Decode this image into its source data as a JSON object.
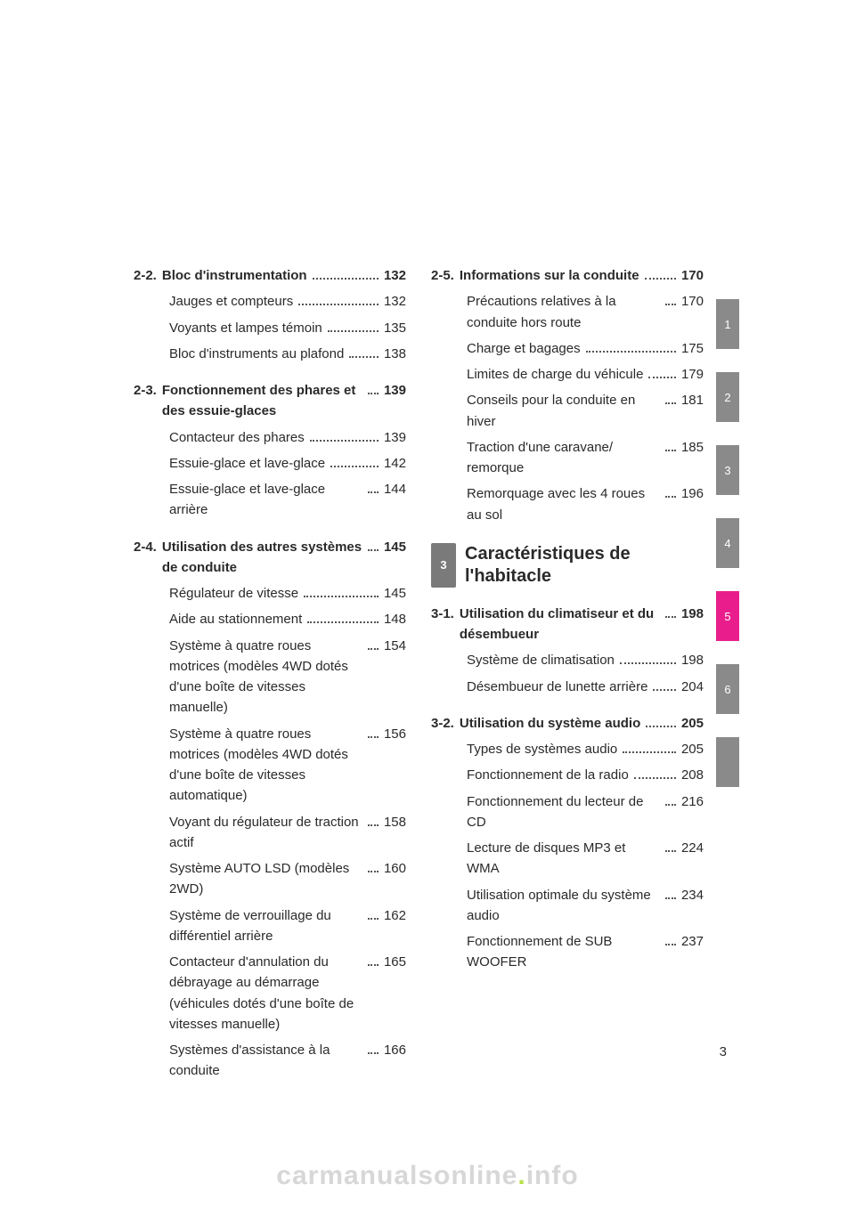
{
  "leftColumn": [
    {
      "num": "2-2.",
      "head": "Bloc d'instrumentation",
      "page": "132",
      "items": [
        [
          "Jauges et compteurs",
          "132"
        ],
        [
          "Voyants et lampes témoin",
          "135"
        ],
        [
          "Bloc d'instruments au plafond",
          "138"
        ]
      ]
    },
    {
      "num": "2-3.",
      "head": "Fonctionnement des phares et des essuie-glaces",
      "page": "139",
      "items": [
        [
          "Contacteur des phares",
          "139"
        ],
        [
          "Essuie-glace et lave-glace",
          "142"
        ],
        [
          "Essuie-glace et lave-glace arrière",
          "144"
        ]
      ]
    },
    {
      "num": "2-4.",
      "head": "Utilisation des autres systèmes de conduite",
      "page": "145",
      "items": [
        [
          "Régulateur de vitesse",
          "145"
        ],
        [
          "Aide au stationnement",
          "148"
        ],
        [
          "Système à quatre roues motrices (modèles 4WD dotés d'une boîte de vitesses manuelle)",
          "154"
        ],
        [
          "Système à quatre roues motrices (modèles 4WD dotés d'une boîte de vitesses automatique)",
          "156"
        ],
        [
          "Voyant du régulateur de traction actif",
          "158"
        ],
        [
          "Système AUTO LSD (modèles 2WD)",
          "160"
        ],
        [
          "Système de verrouillage du différentiel arrière",
          "162"
        ],
        [
          "Contacteur d'annulation du débrayage au démarrage (véhicules dotés d'une boîte de vitesses manuelle)",
          "165"
        ],
        [
          "Systèmes d'assistance à la conduite",
          "166"
        ]
      ]
    }
  ],
  "rightColumn": {
    "preChapter": {
      "num": "2-5.",
      "head": "Informations sur la conduite",
      "page": "170",
      "items": [
        [
          "Précautions relatives à la conduite hors route",
          "170"
        ],
        [
          "Charge et bagages",
          "175"
        ],
        [
          "Limites de charge du véhicule",
          "179"
        ],
        [
          "Conseils pour la conduite en hiver",
          "181"
        ],
        [
          "Traction d'une caravane/ remorque",
          "185"
        ],
        [
          "Remorquage avec les 4 roues au sol",
          "196"
        ]
      ]
    },
    "chapter": {
      "badge": "3",
      "title": "Caractéristiques de l'habitacle"
    },
    "postChapter": [
      {
        "num": "3-1.",
        "head": "Utilisation du climatiseur et du désembueur",
        "page": "198",
        "items": [
          [
            "Système de climatisation",
            "198"
          ],
          [
            "Désembueur de lunette arrière",
            "204"
          ]
        ]
      },
      {
        "num": "3-2.",
        "head": "Utilisation du système audio",
        "page": "205",
        "items": [
          [
            "Types de systèmes audio",
            "205"
          ],
          [
            "Fonctionnement de la radio",
            "208"
          ],
          [
            "Fonctionnement du lecteur de CD",
            "216"
          ],
          [
            "Lecture de disques MP3 et WMA",
            "224"
          ],
          [
            "Utilisation optimale du système audio",
            "234"
          ],
          [
            "Fonctionnement de SUB WOOFER",
            "237"
          ]
        ]
      }
    ]
  },
  "tabs": [
    "1",
    "2",
    "3",
    "4",
    "5",
    "6",
    ""
  ],
  "activeTab": 4,
  "pageNumber": "3",
  "watermark": {
    "prefix": "carmanualsonline",
    "suffix": "info"
  }
}
